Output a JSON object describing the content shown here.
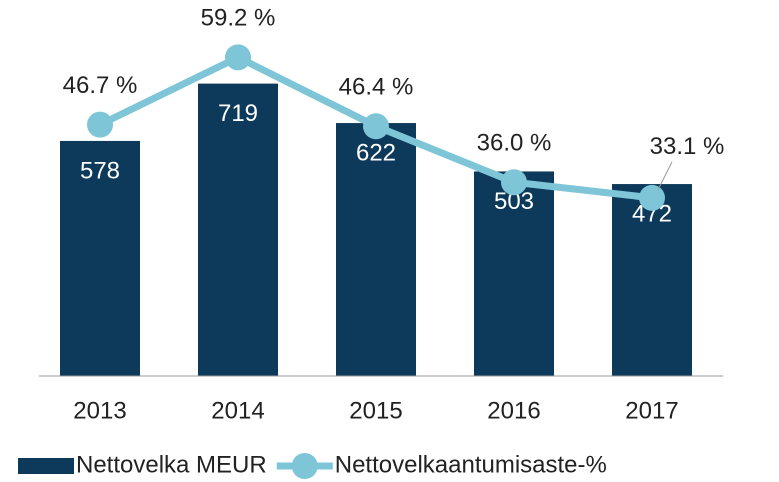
{
  "chart_data": {
    "type": "bar-line",
    "categories": [
      "2013",
      "2014",
      "2015",
      "2016",
      "2017"
    ],
    "series": [
      {
        "name": "Nettovelka MEUR",
        "type": "bar",
        "color": "#0d3a5a",
        "values": [
          578,
          719,
          622,
          503,
          472
        ]
      },
      {
        "name": "Nettovelkaantumisaste-%",
        "type": "line",
        "axis": "y2",
        "color": "#7dc5d7",
        "values": [
          46.7,
          59.2,
          46.4,
          36.0,
          33.1
        ],
        "value_labels": [
          "46.7 %",
          "59.2 %",
          "46.4 %",
          "36.0 %",
          "33.1 %"
        ]
      }
    ],
    "ylim": [
      0,
      900
    ],
    "y2lim": [
      0,
      68
    ],
    "legend": "bottom"
  }
}
